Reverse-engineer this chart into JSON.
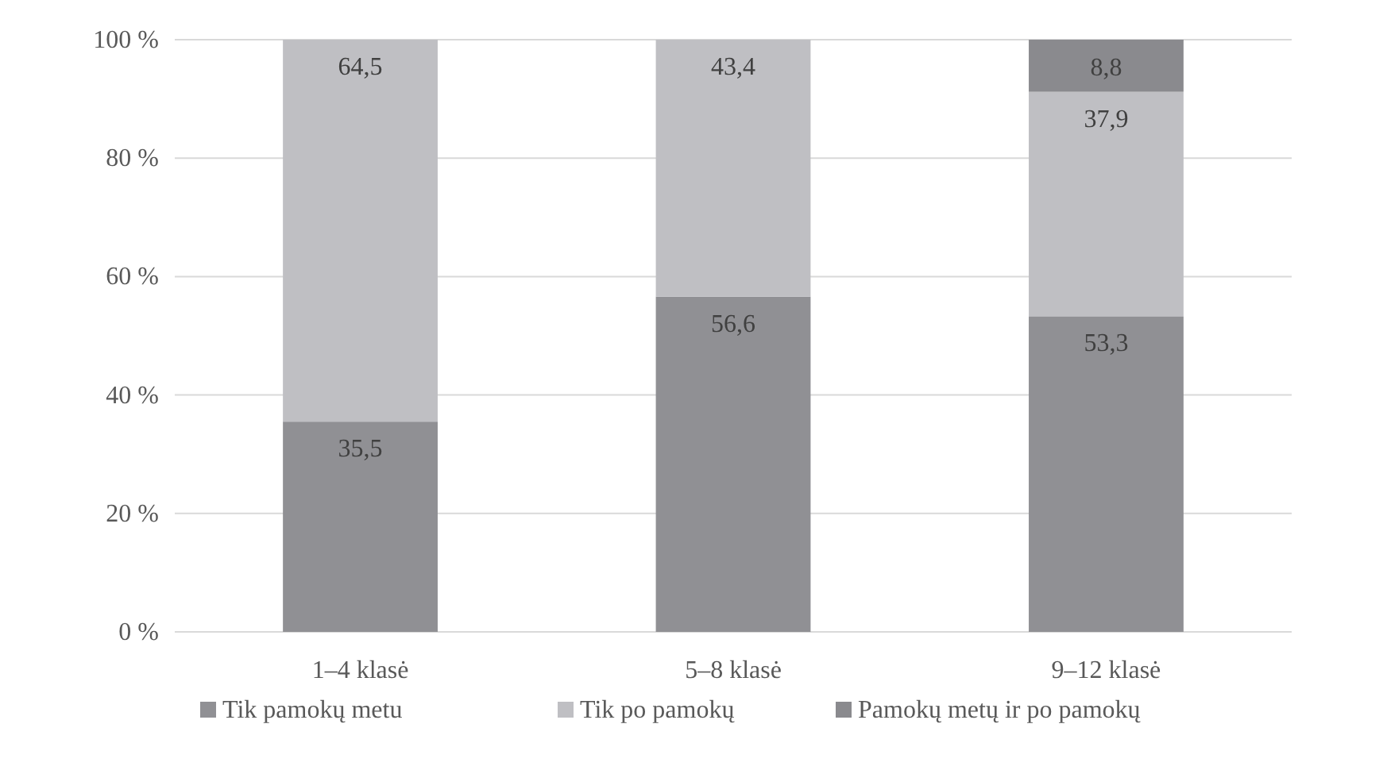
{
  "chart_data": {
    "type": "bar",
    "stacked": true,
    "categories": [
      "1–4 klasė",
      "5–8 klasė",
      "9–12 klasė"
    ],
    "series": [
      {
        "name": "Tik pamokų metu",
        "color": "#909094",
        "values": [
          35.5,
          56.6,
          53.3
        ],
        "value_labels": [
          "35,5",
          "56,6",
          "53,3"
        ]
      },
      {
        "name": "Tik po pamokų",
        "color": "#bfbfc3",
        "values": [
          64.5,
          43.4,
          37.9
        ],
        "value_labels": [
          "64,5",
          "43,4",
          "37,9"
        ]
      },
      {
        "name": "Pamokų metų ir po pamokų",
        "color": "#8a8a8e",
        "values": [
          null,
          null,
          8.8
        ],
        "value_labels": [
          null,
          null,
          "8,8"
        ]
      }
    ],
    "ylim": [
      0,
      100
    ],
    "yticks": [
      {
        "value": 0,
        "label": "0 %"
      },
      {
        "value": 20,
        "label": "20 %"
      },
      {
        "value": 40,
        "label": "40 %"
      },
      {
        "value": 60,
        "label": "60 %"
      },
      {
        "value": 80,
        "label": "80 %"
      },
      {
        "value": 100,
        "label": "100 %"
      }
    ],
    "grid": "y",
    "legend": "bottom"
  }
}
